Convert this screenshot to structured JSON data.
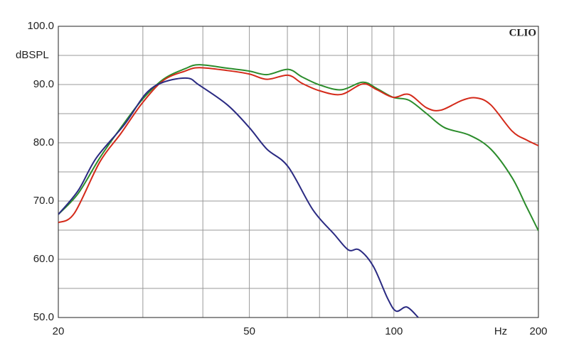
{
  "chart_data": {
    "type": "line",
    "brand": "CLIO",
    "ylabel": "dBSPL",
    "xlabel": "Hz",
    "xscale": "log",
    "xlim": [
      20,
      200
    ],
    "ylim": [
      50,
      100
    ],
    "xticks": [
      20,
      50,
      100,
      200
    ],
    "xgrid": [
      30,
      40,
      60,
      70,
      80,
      90
    ],
    "yticks": [
      {
        "value": 50,
        "label": "50.0"
      },
      {
        "value": 60,
        "label": "60.0"
      },
      {
        "value": 70,
        "label": "70.0"
      },
      {
        "value": 80,
        "label": "80.0"
      },
      {
        "value": 90,
        "label": "90.0"
      },
      {
        "value": 100,
        "label": "100.0"
      }
    ],
    "ygrid": [
      55,
      65,
      75,
      85,
      95
    ],
    "series": [
      {
        "color": "#2b8c2b",
        "x": [
          20,
          22.0,
          24.4,
          27.0,
          29.9,
          33.1,
          36.7,
          39.3,
          45.0,
          50,
          54.4,
          60.2,
          64.4,
          70.2,
          77.7,
          86.1,
          92.2,
          99.7,
          107.5,
          117,
          127.5,
          143.7,
          159.2,
          176.3,
          188.7,
          200
        ],
        "values": [
          67.7,
          71.3,
          77.4,
          82.6,
          87.4,
          90.9,
          92.7,
          93.4,
          92.8,
          92.3,
          91.7,
          92.6,
          91.3,
          89.9,
          89.1,
          90.4,
          89.3,
          87.8,
          87.3,
          85.0,
          82.6,
          81.3,
          78.9,
          74.0,
          69.1,
          64.9
        ]
      },
      {
        "color": "#d42a1a",
        "x": [
          20,
          21.6,
          24.4,
          27.0,
          29.9,
          33.1,
          36.7,
          39.3,
          45.0,
          50,
          54.4,
          60.2,
          64.4,
          70.2,
          77.7,
          86.1,
          92.2,
          99.7,
          107.5,
          117,
          125.3,
          138.8,
          148.6,
          159.2,
          176.3,
          188.7,
          200
        ],
        "values": [
          66.3,
          67.9,
          76.7,
          81.6,
          86.8,
          90.7,
          92.3,
          92.9,
          92.4,
          91.8,
          90.9,
          91.6,
          90.2,
          88.9,
          88.3,
          90.1,
          89.1,
          87.8,
          88.3,
          86.0,
          85.6,
          87.3,
          87.7,
          86.5,
          82.0,
          80.5,
          79.5
        ]
      },
      {
        "color": "#2a2a82",
        "x": [
          20,
          22.0,
          24.0,
          27.5,
          30.4,
          33.1,
          37.1,
          39.3,
          45.0,
          50,
          54.4,
          60.2,
          67.8,
          75.1,
          80.4,
          84.7,
          90.6,
          97.0,
          101.1,
          106.4,
          112.4
        ],
        "values": [
          67.7,
          71.8,
          77.4,
          83.2,
          88.4,
          90.4,
          91.1,
          89.9,
          86.5,
          82.6,
          78.9,
          75.9,
          68.5,
          64.3,
          61.6,
          61.6,
          58.8,
          53.3,
          51.1,
          51.8,
          50.0
        ]
      }
    ]
  }
}
